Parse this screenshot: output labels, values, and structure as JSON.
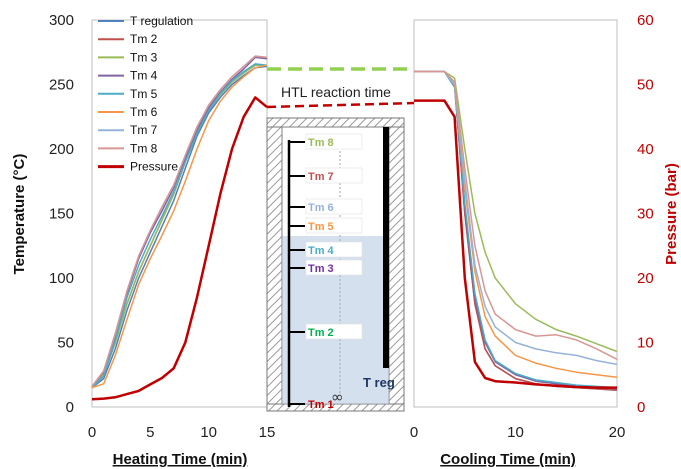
{
  "chart_data": {
    "type": "line",
    "left_axis": {
      "title": "Temperature (°C)",
      "ticks": [
        "0",
        "50",
        "100",
        "150",
        "200",
        "250",
        "300"
      ],
      "range": [
        0,
        300
      ]
    },
    "right_axis": {
      "title": "Pressure (bar)",
      "ticks": [
        "0",
        "10",
        "20",
        "30",
        "40",
        "50",
        "60"
      ],
      "range": [
        0,
        60
      ],
      "color": "#c00000"
    },
    "heating": {
      "xlabel": "Heating Time (min)",
      "ticks": [
        "0",
        "5",
        "10",
        "15"
      ],
      "range": [
        0,
        15
      ]
    },
    "cooling": {
      "xlabel": "Cooling Time (min)",
      "ticks": [
        "0",
        "10",
        "20"
      ],
      "range": [
        0,
        20
      ]
    },
    "annotation": "HTL reaction time",
    "legend": [
      {
        "name": "T regulation",
        "color": "#4f81bd"
      },
      {
        "name": "Tm 2",
        "color": "#c0504d"
      },
      {
        "name": "Tm 3",
        "color": "#9bbb59"
      },
      {
        "name": "Tm 4",
        "color": "#8064a2"
      },
      {
        "name": "Tm 5",
        "color": "#4bacc6"
      },
      {
        "name": "Tm 6",
        "color": "#f79646"
      },
      {
        "name": "Tm 7",
        "color": "#95b3d7"
      },
      {
        "name": "Tm 8",
        "color": "#d99694"
      },
      {
        "name": "Pressure",
        "color": "#c00000"
      }
    ],
    "heating_series": [
      {
        "name": "T regulation",
        "x": [
          0,
          1,
          2,
          3,
          4,
          5,
          6,
          7,
          8,
          9,
          10,
          11,
          12,
          13,
          14,
          15
        ],
        "y": [
          15,
          22,
          45,
          75,
          100,
          120,
          140,
          160,
          185,
          210,
          228,
          240,
          250,
          257,
          263,
          264
        ]
      },
      {
        "name": "Tm 2",
        "x": [
          0,
          1,
          2,
          3,
          4,
          5,
          6,
          7,
          8,
          9,
          10,
          11,
          12,
          13,
          14,
          15
        ],
        "y": [
          15,
          25,
          50,
          80,
          105,
          125,
          145,
          165,
          190,
          213,
          230,
          242,
          252,
          259,
          265,
          265
        ]
      },
      {
        "name": "Tm 3",
        "x": [
          0,
          1,
          2,
          3,
          4,
          5,
          6,
          7,
          8,
          9,
          10,
          11,
          12,
          13,
          14,
          15
        ],
        "y": [
          15,
          25,
          50,
          80,
          105,
          125,
          145,
          165,
          190,
          213,
          230,
          242,
          252,
          259,
          265,
          265
        ]
      },
      {
        "name": "Tm 4",
        "x": [
          0,
          1,
          2,
          3,
          4,
          5,
          6,
          7,
          8,
          9,
          10,
          11,
          12,
          13,
          14,
          15
        ],
        "y": [
          16,
          27,
          55,
          88,
          115,
          135,
          152,
          170,
          193,
          215,
          232,
          244,
          254,
          262,
          271,
          270
        ]
      },
      {
        "name": "Tm 5",
        "x": [
          0,
          1,
          2,
          3,
          4,
          5,
          6,
          7,
          8,
          9,
          10,
          11,
          12,
          13,
          14,
          15
        ],
        "y": [
          15,
          24,
          52,
          85,
          110,
          130,
          148,
          167,
          190,
          212,
          230,
          243,
          253,
          260,
          266,
          265
        ]
      },
      {
        "name": "Tm 6",
        "x": [
          0,
          1,
          2,
          3,
          4,
          5,
          6,
          7,
          8,
          9,
          10,
          11,
          12,
          13,
          14,
          15
        ],
        "y": [
          15,
          18,
          40,
          68,
          95,
          115,
          133,
          152,
          175,
          200,
          222,
          237,
          248,
          256,
          263,
          265
        ]
      },
      {
        "name": "Tm 7",
        "x": [
          0,
          1,
          2,
          3,
          4,
          5,
          6,
          7,
          8,
          9,
          10,
          11,
          12,
          13,
          14,
          15
        ],
        "y": [
          16,
          28,
          57,
          90,
          117,
          137,
          155,
          172,
          195,
          217,
          234,
          246,
          256,
          264,
          272,
          271
        ]
      },
      {
        "name": "Tm 8",
        "x": [
          0,
          1,
          2,
          3,
          4,
          5,
          6,
          7,
          8,
          9,
          10,
          11,
          12,
          13,
          14,
          15
        ],
        "y": [
          16,
          28,
          57,
          90,
          117,
          137,
          155,
          172,
          195,
          217,
          234,
          246,
          256,
          264,
          272,
          271
        ]
      },
      {
        "name": "Pressure",
        "x": [
          0,
          1,
          2,
          3,
          4,
          5,
          6,
          7,
          8,
          9,
          10,
          11,
          12,
          13,
          14,
          15
        ],
        "y": [
          1.2,
          1.3,
          1.5,
          2,
          2.5,
          3.5,
          4.5,
          6,
          10,
          17,
          25,
          33,
          40,
          45,
          48,
          46.5
        ]
      }
    ],
    "cooling_series": [
      {
        "name": "T regulation",
        "x": [
          0,
          1,
          2,
          3,
          4,
          5,
          6,
          7,
          8,
          10,
          12,
          14,
          16,
          18,
          20
        ],
        "y": [
          260,
          260,
          260,
          260,
          250,
          150,
          80,
          45,
          32,
          22,
          18,
          16,
          15,
          14,
          13
        ]
      },
      {
        "name": "Tm 2",
        "x": [
          0,
          1,
          2,
          3,
          4,
          5,
          6,
          7,
          8,
          10,
          12,
          14,
          16,
          18,
          20
        ],
        "y": [
          260,
          260,
          260,
          260,
          250,
          150,
          80,
          45,
          32,
          22,
          18,
          16,
          15,
          14,
          13
        ]
      },
      {
        "name": "Tm 3",
        "x": [
          0,
          1,
          2,
          3,
          4,
          5,
          6,
          7,
          8,
          10,
          12,
          14,
          16,
          18,
          20
        ],
        "y": [
          260,
          260,
          260,
          260,
          255,
          200,
          150,
          120,
          100,
          80,
          68,
          60,
          55,
          49,
          43
        ]
      },
      {
        "name": "Tm 4",
        "x": [
          0,
          1,
          2,
          3,
          4,
          5,
          6,
          7,
          8,
          10,
          12,
          14,
          16,
          18,
          20
        ],
        "y": [
          260,
          260,
          260,
          260,
          248,
          155,
          85,
          50,
          35,
          25,
          20,
          18,
          16,
          15,
          14
        ]
      },
      {
        "name": "Tm 5",
        "x": [
          0,
          1,
          2,
          3,
          4,
          5,
          6,
          7,
          8,
          10,
          12,
          14,
          16,
          18,
          20
        ],
        "y": [
          260,
          260,
          260,
          260,
          248,
          158,
          88,
          52,
          36,
          26,
          21,
          19,
          17,
          16,
          15
        ]
      },
      {
        "name": "Tm 6",
        "x": [
          0,
          1,
          2,
          3,
          4,
          5,
          6,
          7,
          8,
          10,
          12,
          14,
          16,
          18,
          20
        ],
        "y": [
          260,
          260,
          260,
          260,
          250,
          170,
          105,
          70,
          55,
          40,
          34,
          30,
          27,
          25,
          23
        ]
      },
      {
        "name": "Tm 7",
        "x": [
          0,
          1,
          2,
          3,
          4,
          5,
          6,
          7,
          8,
          10,
          12,
          14,
          16,
          18,
          20
        ],
        "y": [
          260,
          260,
          260,
          260,
          250,
          175,
          110,
          78,
          62,
          50,
          45,
          42,
          40,
          36,
          33
        ]
      },
      {
        "name": "Tm 8",
        "x": [
          0,
          1,
          2,
          3,
          4,
          5,
          6,
          7,
          8,
          10,
          12,
          14,
          16,
          18,
          20
        ],
        "y": [
          260,
          260,
          260,
          260,
          252,
          185,
          125,
          90,
          72,
          60,
          55,
          56,
          52,
          45,
          37
        ]
      },
      {
        "name": "Pressure",
        "x": [
          0,
          1,
          2,
          3,
          4,
          5,
          6,
          7,
          8,
          10,
          12,
          14,
          16,
          18,
          20
        ],
        "y": [
          47.5,
          47.5,
          47.5,
          47.5,
          45,
          20,
          7,
          4.5,
          4,
          3.8,
          3.5,
          3.3,
          3.1,
          3,
          3
        ]
      }
    ],
    "inset": {
      "labels": [
        {
          "text": "Tm 8",
          "color": "#9bbb59"
        },
        {
          "text": "Tm 7",
          "color": "#c0504d"
        },
        {
          "text": "Tm 6",
          "color": "#95b3d7"
        },
        {
          "text": "Tm 5",
          "color": "#f79646"
        },
        {
          "text": "Tm 4",
          "color": "#4bacc6"
        },
        {
          "text": "Tm 3",
          "color": "#7030a0"
        },
        {
          "text": "Tm 2",
          "color": "#00b050"
        },
        {
          "text": "Tm 1",
          "color": "#c00000"
        }
      ],
      "treg_label": "T reg",
      "treg_color": "#1f3864",
      "symbol": "∞"
    }
  }
}
